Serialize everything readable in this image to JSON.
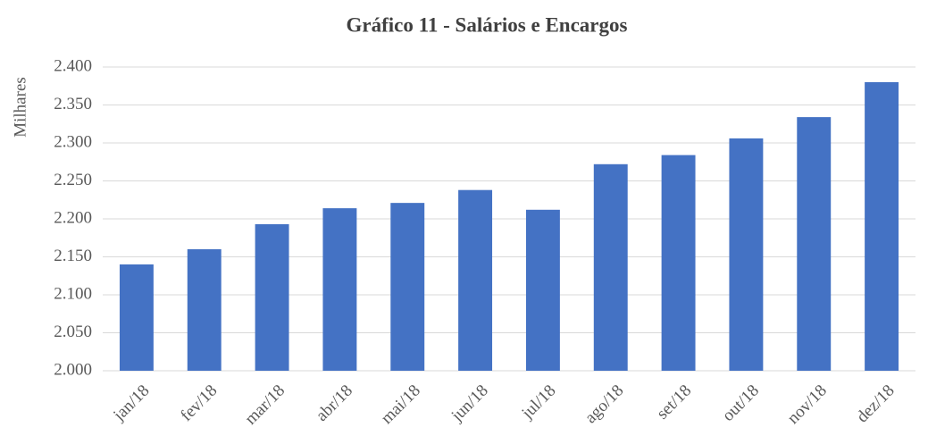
{
  "chart_data": {
    "type": "bar",
    "title": "Gráfico 11 - Salários e Encargos",
    "y_label": "Milhares",
    "categories": [
      "jan/18",
      "fev/18",
      "mar/18",
      "abr/18",
      "mai/18",
      "jun/18",
      "jul/18",
      "ago/18",
      "set/18",
      "out/18",
      "nov/18",
      "dez/18"
    ],
    "values": [
      2140,
      2160,
      2193,
      2214,
      2221,
      2238,
      2212,
      2272,
      2284,
      2306,
      2334,
      2380
    ],
    "color": "#4472c4",
    "ylim": [
      2000,
      2400
    ],
    "yticks": [
      {
        "value": 2000,
        "label": "2.000"
      },
      {
        "value": 2050,
        "label": "2.050"
      },
      {
        "value": 2100,
        "label": "2.100"
      },
      {
        "value": 2150,
        "label": "2.150"
      },
      {
        "value": 2200,
        "label": "2.200"
      },
      {
        "value": 2250,
        "label": "2.250"
      },
      {
        "value": 2300,
        "label": "2.300"
      },
      {
        "value": 2350,
        "label": "2.350"
      },
      {
        "value": 2400,
        "label": "2.400"
      }
    ],
    "grid": true
  }
}
